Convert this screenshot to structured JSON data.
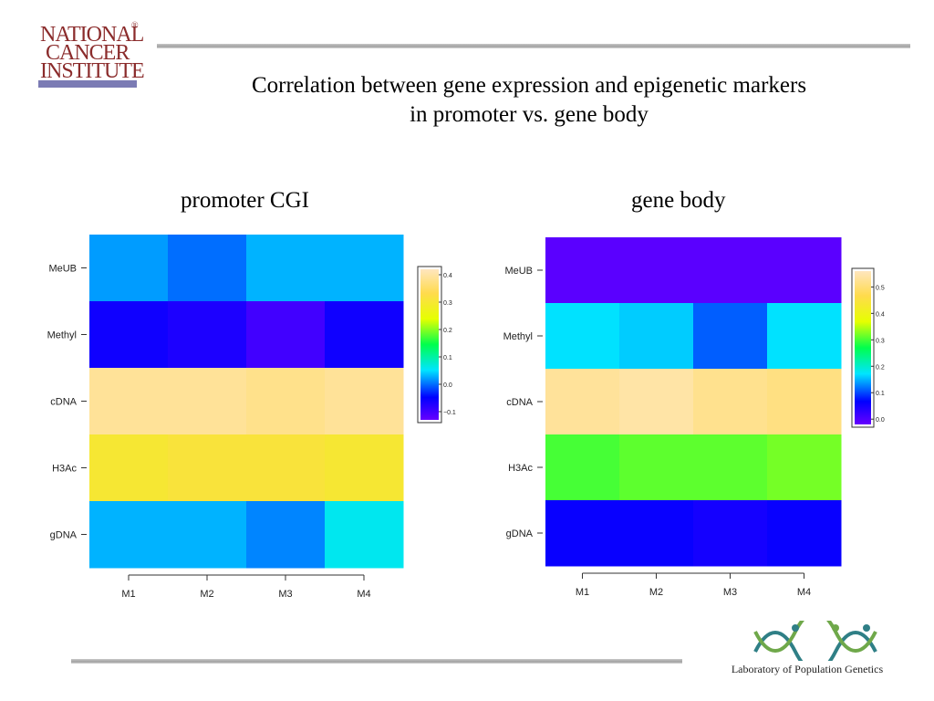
{
  "logo_nci": {
    "line1": "NATIONAL",
    "line2": "CANCER",
    "line3": "INSTITUTE",
    "reg": "®"
  },
  "title": {
    "line1": "Correlation between gene expression and epigenetic markers",
    "line2": "in promoter vs. gene body"
  },
  "logo_lpg": {
    "text": "Laboratory of Population Genetics"
  },
  "colors": {
    "title_text": "#000000",
    "nci_red": "#8b2c2c",
    "nci_bar": "#7b7bb4",
    "lpg_teal": "#2f7f86",
    "lpg_green": "#6fa84a"
  },
  "chart_data": [
    {
      "type": "heatmap",
      "title": "promoter CGI",
      "rows": [
        "MeUB",
        "Methyl",
        "cDNA",
        "H3Ac",
        "gDNA"
      ],
      "columns": [
        "M1",
        "M2",
        "M3",
        "M4"
      ],
      "values": [
        [
          0.02,
          0.0,
          0.03,
          0.03
        ],
        [
          -0.06,
          -0.07,
          -0.1,
          -0.06
        ],
        [
          0.39,
          0.39,
          0.38,
          0.39
        ],
        [
          0.3,
          0.31,
          0.31,
          0.3
        ],
        [
          0.03,
          0.03,
          0.01,
          0.06
        ]
      ],
      "colorbar": {
        "min": -0.13,
        "max": 0.42,
        "ticks": [
          -0.1,
          0.0,
          0.1,
          0.2,
          0.3,
          0.4
        ],
        "tick_labels": [
          "−0.1",
          "0.0",
          "0.1",
          "0.2",
          "0.3",
          "0.4"
        ]
      },
      "legend_position": "right"
    },
    {
      "type": "heatmap",
      "title": "gene body",
      "rows": [
        "MeUB",
        "Methyl",
        "cDNA",
        "H3Ac",
        "gDNA"
      ],
      "columns": [
        "M1",
        "M2",
        "M3",
        "M4"
      ],
      "values": [
        [
          -0.01,
          -0.01,
          -0.01,
          -0.01
        ],
        [
          0.17,
          0.16,
          0.11,
          0.17
        ],
        [
          0.53,
          0.54,
          0.52,
          0.51
        ],
        [
          0.3,
          0.31,
          0.31,
          0.32
        ],
        [
          0.06,
          0.06,
          0.05,
          0.06
        ]
      ],
      "colorbar": {
        "min": -0.02,
        "max": 0.56,
        "ticks": [
          0.0,
          0.1,
          0.2,
          0.3,
          0.4,
          0.5
        ],
        "tick_labels": [
          "0.0",
          "0.1",
          "0.2",
          "0.3",
          "0.4",
          "0.5"
        ]
      },
      "legend_position": "right"
    }
  ]
}
